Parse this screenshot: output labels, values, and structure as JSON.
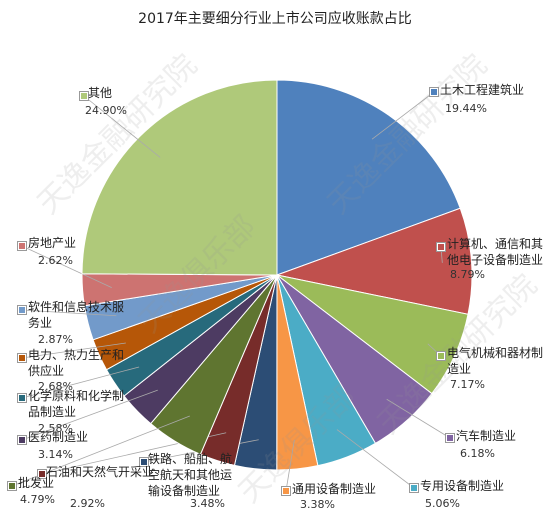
{
  "chart_data": {
    "type": "pie",
    "title": "2017年主要细分行业上市公司应收账款占比",
    "categories": [
      "土木工程建筑业",
      "计算机、通信和其他电子设备制造业",
      "电气机械和器材制造业",
      "汽车制造业",
      "专用设备制造业",
      "通用设备制造业",
      "铁路、船舶、航空航天和其他运输设备制造业",
      "石油和天然气开采业",
      "批发业",
      "医药制造业",
      "化学原料和化学制品制造业",
      "电力、热力生产和供应业",
      "软件和信息技术服务业",
      "房地产业",
      "其他"
    ],
    "values": [
      19.44,
      8.79,
      7.17,
      6.18,
      5.06,
      3.38,
      3.48,
      2.92,
      4.79,
      3.14,
      2.58,
      2.68,
      2.87,
      2.62,
      24.9
    ],
    "value_labels": [
      "19.44%",
      "8.79%",
      "7.17%",
      "6.18%",
      "5.06%",
      "3.38%",
      "3.48%",
      "2.92%",
      "4.79%",
      "3.14%",
      "2.58%",
      "2.68%",
      "2.87%",
      "2.62%",
      "24.90%"
    ],
    "colors": [
      "#4f81bd",
      "#c0504d",
      "#9bbb59",
      "#8064a2",
      "#4bacc6",
      "#f79646",
      "#2c4d75",
      "#772c2a",
      "#5f7530",
      "#4d3b62",
      "#276a7c",
      "#b65708",
      "#729aca",
      "#cd7371",
      "#afc97a"
    ],
    "watermarks": [
      "天逸金融研究院",
      "天逸俱乐部"
    ]
  }
}
